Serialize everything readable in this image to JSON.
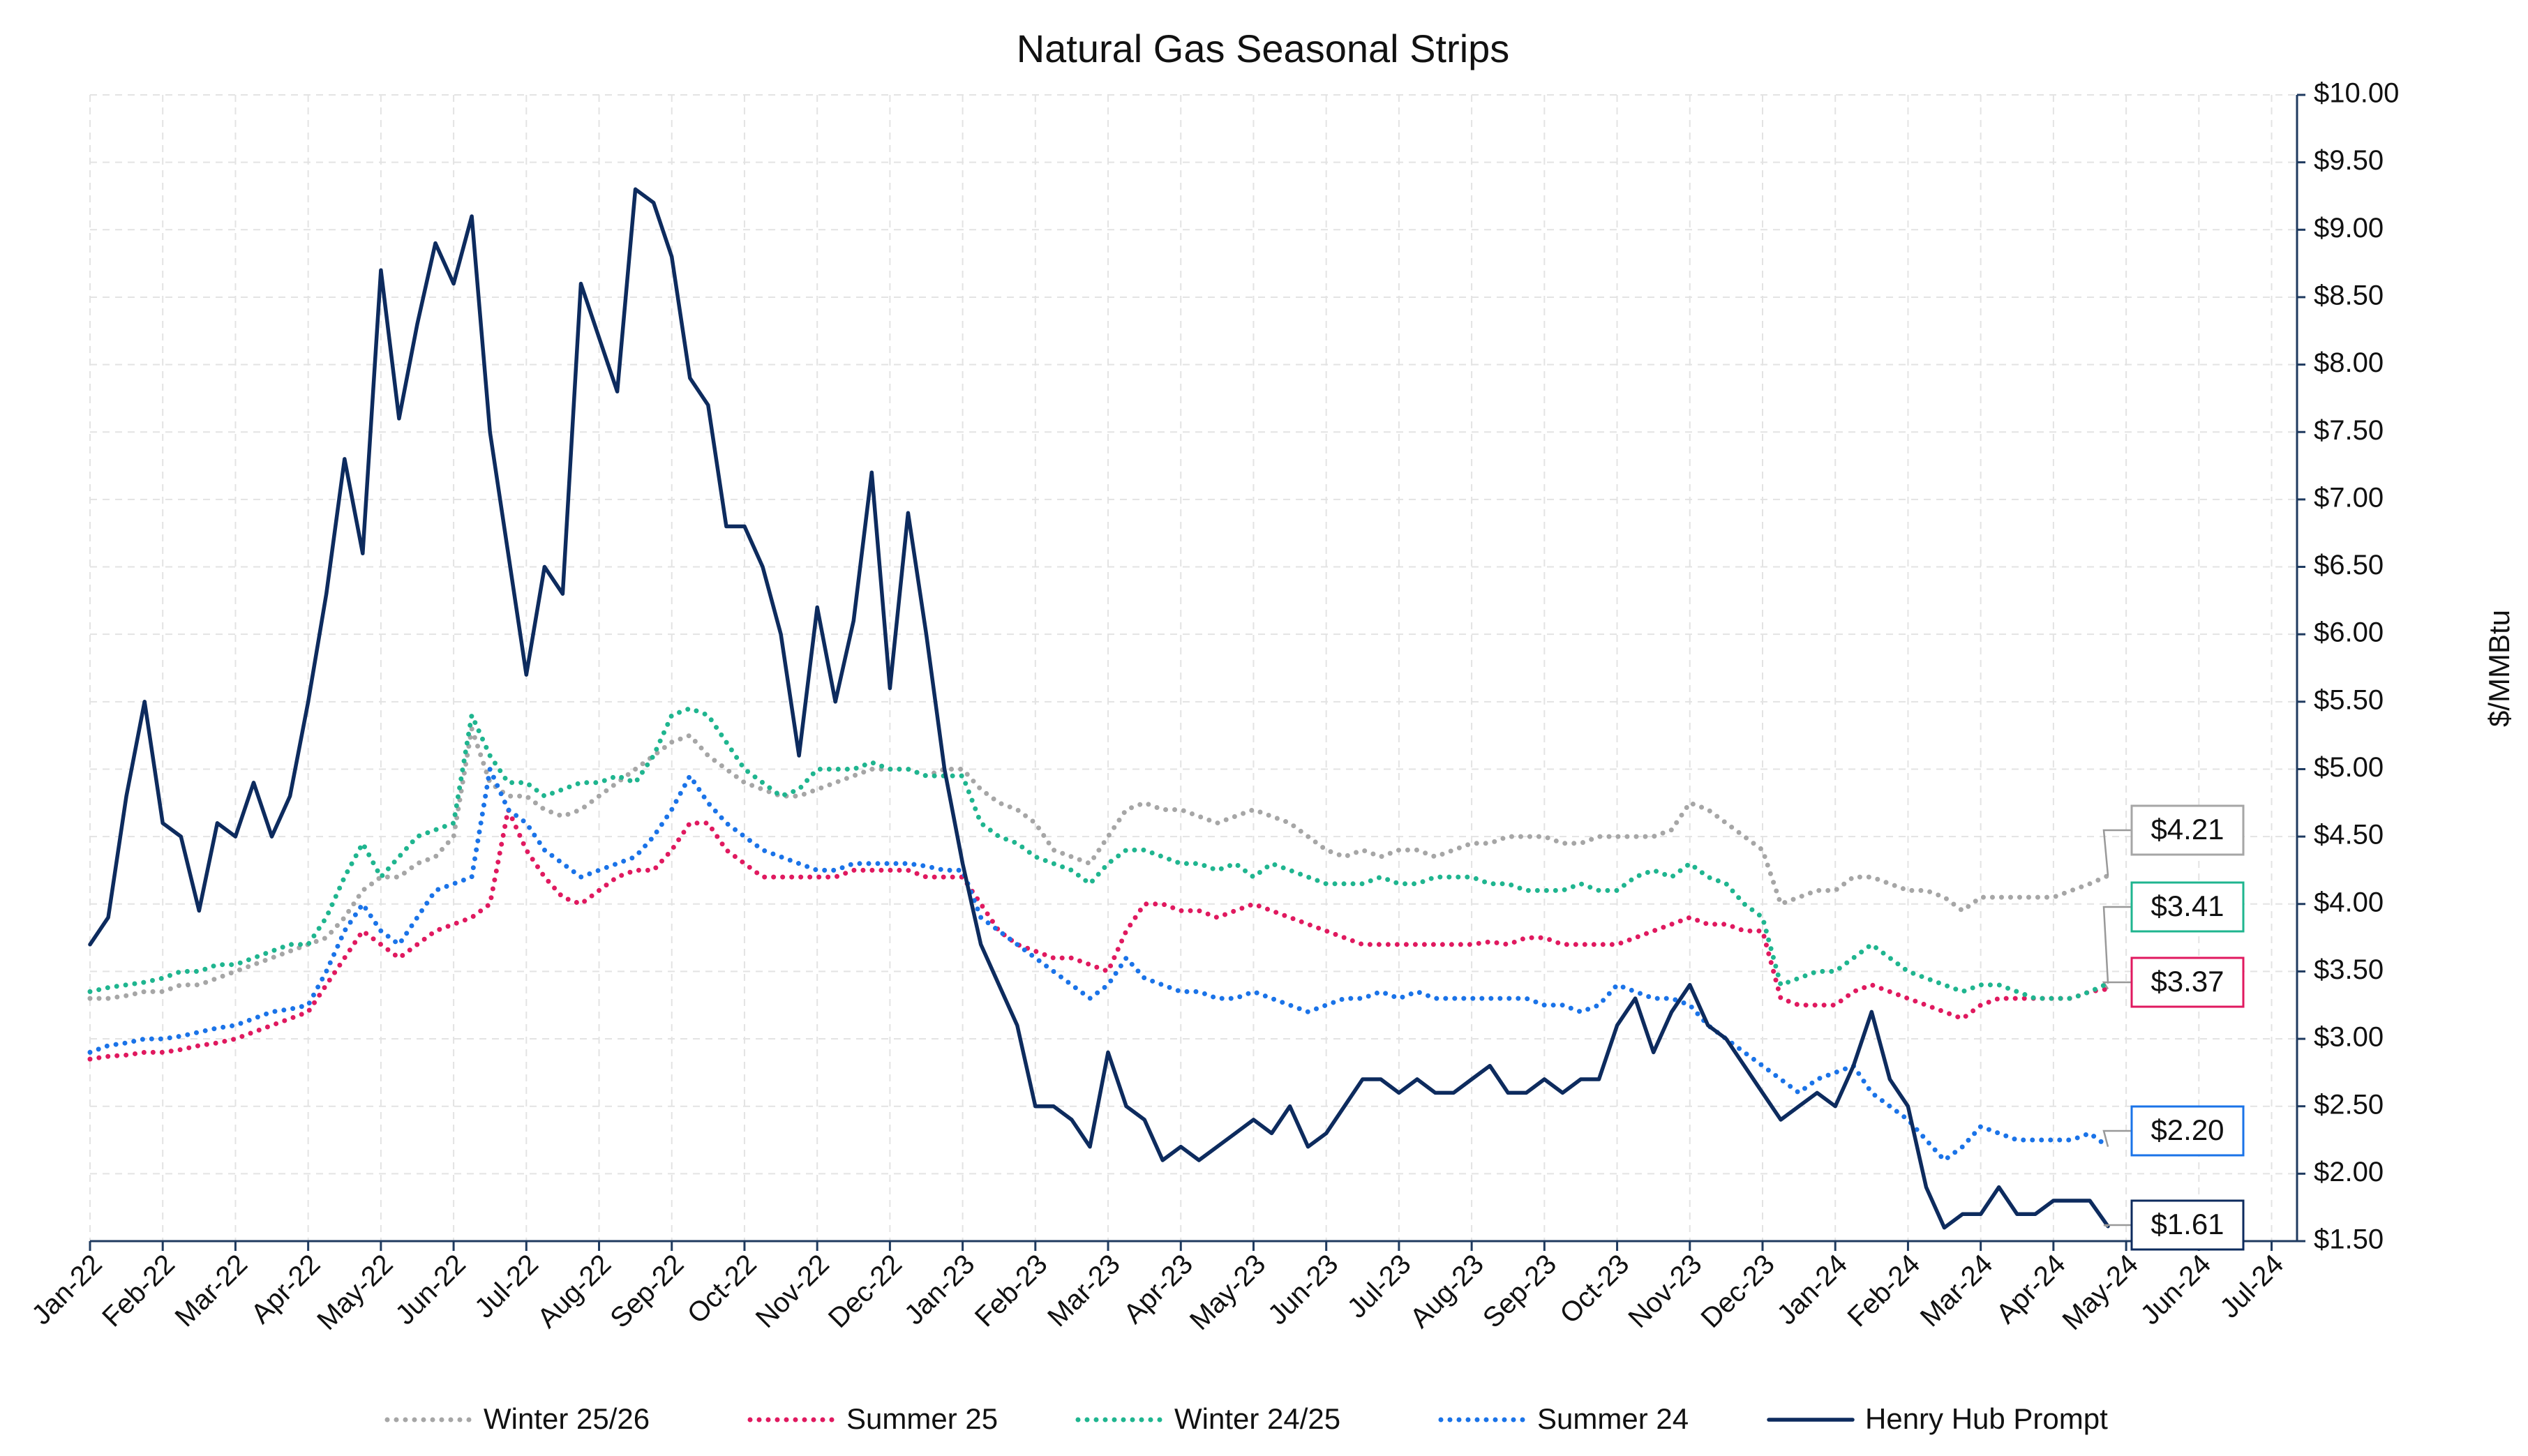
{
  "chart_data": {
    "type": "line",
    "title": "Natural Gas Seasonal Strips",
    "y_label": "$/MMBtu",
    "x": [
      0,
      0.25,
      0.5,
      0.75,
      1,
      1.25,
      1.5,
      1.75,
      2,
      2.25,
      2.5,
      2.75,
      3,
      3.25,
      3.5,
      3.75,
      4,
      4.25,
      4.5,
      4.75,
      5,
      5.25,
      5.5,
      5.75,
      6,
      6.25,
      6.5,
      6.75,
      7,
      7.25,
      7.5,
      7.75,
      8,
      8.25,
      8.5,
      8.75,
      9,
      9.25,
      9.5,
      9.75,
      10,
      10.25,
      10.5,
      10.75,
      11,
      11.25,
      11.5,
      11.75,
      12,
      12.25,
      12.5,
      12.75,
      13,
      13.25,
      13.5,
      13.75,
      14,
      14.25,
      14.5,
      14.75,
      15,
      15.25,
      15.5,
      15.75,
      16,
      16.25,
      16.5,
      16.75,
      17,
      17.25,
      17.5,
      17.75,
      18,
      18.25,
      18.5,
      18.75,
      19,
      19.25,
      19.5,
      19.75,
      20,
      20.25,
      20.5,
      20.75,
      21,
      21.25,
      21.5,
      21.75,
      22,
      22.25,
      22.5,
      22.75,
      23,
      23.25,
      23.5,
      23.75,
      24,
      24.25,
      24.5,
      24.75,
      25,
      25.25,
      25.5,
      25.75,
      26,
      26.25,
      26.5,
      26.75,
      27,
      27.25,
      27.5,
      27.75
    ],
    "xlim": [
      0,
      30.35
    ],
    "xticks": [
      {
        "value": 0,
        "label": "Jan-22"
      },
      {
        "value": 1,
        "label": "Feb-22"
      },
      {
        "value": 2,
        "label": "Mar-22"
      },
      {
        "value": 3,
        "label": "Apr-22"
      },
      {
        "value": 4,
        "label": "May-22"
      },
      {
        "value": 5,
        "label": "Jun-22"
      },
      {
        "value": 6,
        "label": "Jul-22"
      },
      {
        "value": 7,
        "label": "Aug-22"
      },
      {
        "value": 8,
        "label": "Sep-22"
      },
      {
        "value": 9,
        "label": "Oct-22"
      },
      {
        "value": 10,
        "label": "Nov-22"
      },
      {
        "value": 11,
        "label": "Dec-22"
      },
      {
        "value": 12,
        "label": "Jan-23"
      },
      {
        "value": 13,
        "label": "Feb-23"
      },
      {
        "value": 14,
        "label": "Mar-23"
      },
      {
        "value": 15,
        "label": "Apr-23"
      },
      {
        "value": 16,
        "label": "May-23"
      },
      {
        "value": 17,
        "label": "Jun-23"
      },
      {
        "value": 18,
        "label": "Jul-23"
      },
      {
        "value": 19,
        "label": "Aug-23"
      },
      {
        "value": 20,
        "label": "Sep-23"
      },
      {
        "value": 21,
        "label": "Oct-23"
      },
      {
        "value": 22,
        "label": "Nov-23"
      },
      {
        "value": 23,
        "label": "Dec-23"
      },
      {
        "value": 24,
        "label": "Jan-24"
      },
      {
        "value": 25,
        "label": "Feb-24"
      },
      {
        "value": 26,
        "label": "Mar-24"
      },
      {
        "value": 27,
        "label": "Apr-24"
      },
      {
        "value": 28,
        "label": "May-24"
      },
      {
        "value": 29,
        "label": "Jun-24"
      },
      {
        "value": 30,
        "label": "Jul-24"
      }
    ],
    "ylim": [
      1.5,
      10
    ],
    "yticks": [
      {
        "value": 1.5,
        "label": "$1.50"
      },
      {
        "value": 2,
        "label": "$2.00"
      },
      {
        "value": 2.5,
        "label": "$2.50"
      },
      {
        "value": 3,
        "label": "$3.00"
      },
      {
        "value": 3.5,
        "label": "$3.50"
      },
      {
        "value": 4,
        "label": "$4.00"
      },
      {
        "value": 4.5,
        "label": "$4.50"
      },
      {
        "value": 5,
        "label": "$5.00"
      },
      {
        "value": 5.5,
        "label": "$5.50"
      },
      {
        "value": 6,
        "label": "$6.00"
      },
      {
        "value": 6.5,
        "label": "$6.50"
      },
      {
        "value": 7,
        "label": "$7.00"
      },
      {
        "value": 7.5,
        "label": "$7.50"
      },
      {
        "value": 8,
        "label": "$8.00"
      },
      {
        "value": 8.5,
        "label": "$8.50"
      },
      {
        "value": 9,
        "label": "$9.00"
      },
      {
        "value": 9.5,
        "label": "$9.50"
      },
      {
        "value": 10,
        "label": "$10.00"
      }
    ],
    "y_axis_side": "right",
    "grid": true,
    "legend": "bottom",
    "series": [
      {
        "name": "Winter 25/26",
        "color": "#a6a6a6",
        "dash": "dotted",
        "label": "$4.21",
        "values": [
          3.3,
          3.3,
          3.32,
          3.35,
          3.35,
          3.4,
          3.4,
          3.45,
          3.5,
          3.55,
          3.6,
          3.65,
          3.7,
          3.75,
          3.9,
          4.1,
          4.2,
          4.2,
          4.3,
          4.35,
          4.5,
          5.3,
          4.9,
          4.8,
          4.8,
          4.7,
          4.65,
          4.7,
          4.8,
          4.9,
          5.0,
          5.1,
          5.2,
          5.25,
          5.1,
          5.0,
          4.9,
          4.85,
          4.8,
          4.8,
          4.85,
          4.9,
          4.95,
          5.0,
          5.0,
          5.0,
          4.95,
          5.0,
          5.0,
          4.85,
          4.75,
          4.7,
          4.6,
          4.4,
          4.35,
          4.3,
          4.5,
          4.7,
          4.75,
          4.7,
          4.7,
          4.65,
          4.6,
          4.65,
          4.7,
          4.65,
          4.6,
          4.5,
          4.4,
          4.35,
          4.4,
          4.35,
          4.4,
          4.4,
          4.35,
          4.4,
          4.45,
          4.45,
          4.5,
          4.5,
          4.5,
          4.45,
          4.45,
          4.5,
          4.5,
          4.5,
          4.5,
          4.55,
          4.75,
          4.7,
          4.6,
          4.5,
          4.4,
          4.0,
          4.05,
          4.1,
          4.1,
          4.2,
          4.2,
          4.15,
          4.1,
          4.1,
          4.05,
          3.95,
          4.05,
          4.05,
          4.05,
          4.05,
          4.05,
          4.1,
          4.15,
          4.21
        ]
      },
      {
        "name": "Summer 25",
        "color": "#e0195f",
        "dash": "dotted",
        "label": "$3.37",
        "values": [
          2.85,
          2.87,
          2.88,
          2.9,
          2.9,
          2.92,
          2.95,
          2.97,
          3.0,
          3.05,
          3.1,
          3.15,
          3.2,
          3.4,
          3.6,
          3.8,
          3.7,
          3.6,
          3.7,
          3.8,
          3.85,
          3.9,
          4.0,
          4.7,
          4.4,
          4.2,
          4.05,
          4.0,
          4.1,
          4.2,
          4.25,
          4.25,
          4.4,
          4.6,
          4.6,
          4.4,
          4.3,
          4.2,
          4.2,
          4.2,
          4.2,
          4.2,
          4.25,
          4.25,
          4.25,
          4.25,
          4.2,
          4.2,
          4.2,
          4.0,
          3.8,
          3.7,
          3.65,
          3.6,
          3.6,
          3.55,
          3.5,
          3.8,
          4.0,
          4.0,
          3.95,
          3.95,
          3.9,
          3.95,
          4.0,
          3.95,
          3.9,
          3.85,
          3.8,
          3.75,
          3.7,
          3.7,
          3.7,
          3.7,
          3.7,
          3.7,
          3.7,
          3.72,
          3.7,
          3.75,
          3.75,
          3.7,
          3.7,
          3.7,
          3.7,
          3.75,
          3.8,
          3.85,
          3.9,
          3.85,
          3.85,
          3.8,
          3.8,
          3.3,
          3.25,
          3.25,
          3.25,
          3.35,
          3.4,
          3.35,
          3.3,
          3.25,
          3.2,
          3.15,
          3.25,
          3.3,
          3.3,
          3.3,
          3.3,
          3.3,
          3.35,
          3.37
        ]
      },
      {
        "name": "Winter 24/25",
        "color": "#1fb58f",
        "dash": "dotted",
        "label": "$3.41",
        "values": [
          3.35,
          3.38,
          3.4,
          3.42,
          3.45,
          3.5,
          3.5,
          3.55,
          3.55,
          3.6,
          3.65,
          3.7,
          3.7,
          3.9,
          4.2,
          4.45,
          4.2,
          4.35,
          4.5,
          4.55,
          4.6,
          5.4,
          5.1,
          4.9,
          4.9,
          4.8,
          4.85,
          4.9,
          4.9,
          4.95,
          4.9,
          5.1,
          5.4,
          5.45,
          5.4,
          5.2,
          5.0,
          4.9,
          4.8,
          4.85,
          5.0,
          5.0,
          5.0,
          5.05,
          5.0,
          5.0,
          4.95,
          4.95,
          4.95,
          4.6,
          4.5,
          4.45,
          4.35,
          4.3,
          4.25,
          4.15,
          4.3,
          4.4,
          4.4,
          4.35,
          4.3,
          4.3,
          4.25,
          4.3,
          4.2,
          4.3,
          4.25,
          4.2,
          4.15,
          4.15,
          4.15,
          4.2,
          4.15,
          4.15,
          4.2,
          4.2,
          4.2,
          4.15,
          4.15,
          4.1,
          4.1,
          4.1,
          4.15,
          4.1,
          4.1,
          4.2,
          4.25,
          4.2,
          4.3,
          4.2,
          4.15,
          4.0,
          3.9,
          3.4,
          3.45,
          3.5,
          3.5,
          3.6,
          3.7,
          3.6,
          3.5,
          3.45,
          3.4,
          3.35,
          3.4,
          3.4,
          3.35,
          3.3,
          3.3,
          3.3,
          3.35,
          3.41
        ]
      },
      {
        "name": "Summer 24",
        "color": "#1a73e8",
        "dash": "dotted",
        "label": "$2.20",
        "values": [
          2.9,
          2.95,
          2.97,
          3.0,
          3.0,
          3.02,
          3.05,
          3.08,
          3.1,
          3.15,
          3.2,
          3.22,
          3.25,
          3.5,
          3.8,
          4.0,
          3.8,
          3.7,
          3.9,
          4.1,
          4.15,
          4.2,
          5.0,
          4.7,
          4.6,
          4.4,
          4.3,
          4.2,
          4.25,
          4.3,
          4.35,
          4.5,
          4.7,
          4.95,
          4.75,
          4.6,
          4.5,
          4.4,
          4.35,
          4.3,
          4.25,
          4.25,
          4.3,
          4.3,
          4.3,
          4.3,
          4.28,
          4.25,
          4.25,
          3.9,
          3.8,
          3.7,
          3.6,
          3.5,
          3.4,
          3.3,
          3.4,
          3.6,
          3.45,
          3.4,
          3.35,
          3.35,
          3.3,
          3.3,
          3.35,
          3.3,
          3.25,
          3.2,
          3.25,
          3.3,
          3.3,
          3.35,
          3.3,
          3.35,
          3.3,
          3.3,
          3.3,
          3.3,
          3.3,
          3.3,
          3.25,
          3.25,
          3.2,
          3.25,
          3.4,
          3.35,
          3.3,
          3.3,
          3.25,
          3.1,
          3.0,
          2.9,
          2.8,
          2.7,
          2.6,
          2.7,
          2.75,
          2.8,
          2.6,
          2.5,
          2.4,
          2.25,
          2.1,
          2.2,
          2.35,
          2.3,
          2.25,
          2.25,
          2.25,
          2.25,
          2.3,
          2.2
        ]
      },
      {
        "name": "Henry Hub Prompt",
        "color": "#0d2b5e",
        "dash": "solid",
        "label": "$1.61",
        "values": [
          3.7,
          3.9,
          4.8,
          5.5,
          4.6,
          4.5,
          3.95,
          4.6,
          4.5,
          4.9,
          4.5,
          4.8,
          5.5,
          6.3,
          7.3,
          6.6,
          8.7,
          7.6,
          8.3,
          8.9,
          8.6,
          9.1,
          7.5,
          6.6,
          5.7,
          6.5,
          6.3,
          8.6,
          8.2,
          7.8,
          9.3,
          9.2,
          8.8,
          7.9,
          7.7,
          6.8,
          6.8,
          6.5,
          6.0,
          5.1,
          6.2,
          5.5,
          6.1,
          7.2,
          5.6,
          6.9,
          6.0,
          5.0,
          4.3,
          3.7,
          3.4,
          3.1,
          2.5,
          2.5,
          2.4,
          2.2,
          2.9,
          2.5,
          2.4,
          2.1,
          2.2,
          2.1,
          2.2,
          2.3,
          2.4,
          2.3,
          2.5,
          2.2,
          2.3,
          2.5,
          2.7,
          2.7,
          2.6,
          2.7,
          2.6,
          2.6,
          2.7,
          2.8,
          2.6,
          2.6,
          2.7,
          2.6,
          2.7,
          2.7,
          3.1,
          3.3,
          2.9,
          3.2,
          3.4,
          3.1,
          3.0,
          2.8,
          2.6,
          2.4,
          2.5,
          2.6,
          2.5,
          2.8,
          3.2,
          2.7,
          2.5,
          1.9,
          1.6,
          1.7,
          1.7,
          1.9,
          1.7,
          1.7,
          1.8,
          1.8,
          1.8,
          1.61
        ]
      }
    ]
  }
}
